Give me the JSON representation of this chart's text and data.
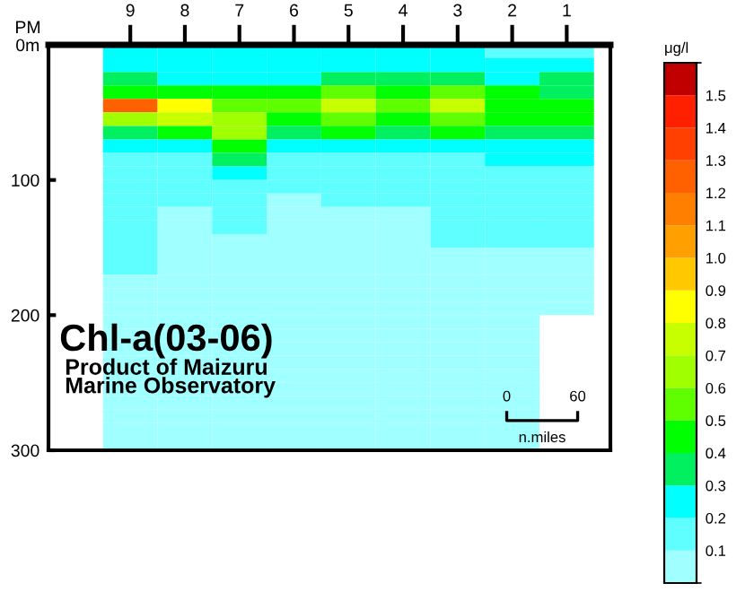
{
  "chart_data": {
    "type": "heatmap",
    "categories": [
      "9",
      "8",
      "7",
      "6",
      "5",
      "4",
      "3",
      "2",
      "1"
    ],
    "y": [
      5,
      15,
      25,
      35,
      45,
      55,
      65,
      75,
      85,
      95,
      105,
      115,
      125,
      135,
      145,
      155,
      165,
      175,
      185,
      195,
      205,
      215,
      225,
      235,
      245,
      255,
      265,
      275,
      285,
      295
    ],
    "cells": [
      [
        0.25,
        0.25,
        0.25,
        0.25,
        0.25,
        0.25,
        0.25,
        0.15,
        0.15
      ],
      [
        0.25,
        0.25,
        0.25,
        0.25,
        0.25,
        0.25,
        0.25,
        0.25,
        0.25
      ],
      [
        0.35,
        0.25,
        0.25,
        0.25,
        0.35,
        0.35,
        0.35,
        0.25,
        0.35
      ],
      [
        0.45,
        0.45,
        0.45,
        0.45,
        0.55,
        0.45,
        0.55,
        0.45,
        0.35
      ],
      [
        1.25,
        0.85,
        0.55,
        0.55,
        0.75,
        0.55,
        0.75,
        0.45,
        0.45
      ],
      [
        0.65,
        0.75,
        0.65,
        0.45,
        0.55,
        0.45,
        0.55,
        0.45,
        0.45
      ],
      [
        0.35,
        0.45,
        0.65,
        0.35,
        0.45,
        0.35,
        0.45,
        0.35,
        0.35
      ],
      [
        0.25,
        0.25,
        0.45,
        0.25,
        0.25,
        0.25,
        0.25,
        0.25,
        0.25
      ],
      [
        0.15,
        0.15,
        0.35,
        0.15,
        0.15,
        0.15,
        0.15,
        0.25,
        0.25
      ],
      [
        0.15,
        0.15,
        0.25,
        0.15,
        0.15,
        0.15,
        0.15,
        0.15,
        0.15
      ],
      [
        0.15,
        0.15,
        0.15,
        0.15,
        0.15,
        0.15,
        0.15,
        0.15,
        0.15
      ],
      [
        0.15,
        0.15,
        0.15,
        0.05,
        0.15,
        0.15,
        0.15,
        0.15,
        0.15
      ],
      [
        0.15,
        0.05,
        0.15,
        0.05,
        0.05,
        0.05,
        0.15,
        0.15,
        0.15
      ],
      [
        0.15,
        0.05,
        0.15,
        0.05,
        0.05,
        0.05,
        0.15,
        0.15,
        0.15
      ],
      [
        0.15,
        0.05,
        0.05,
        0.05,
        0.05,
        0.05,
        0.15,
        0.15,
        0.15
      ],
      [
        0.15,
        0.05,
        0.05,
        0.05,
        0.05,
        0.05,
        0.05,
        0.05,
        0.05
      ],
      [
        0.15,
        0.05,
        0.05,
        0.05,
        0.05,
        0.05,
        0.05,
        0.05,
        0.05
      ],
      [
        0.05,
        0.05,
        0.05,
        0.05,
        0.05,
        0.05,
        0.05,
        0.05,
        0.05
      ],
      [
        0.05,
        0.05,
        0.05,
        0.05,
        0.05,
        0.05,
        0.05,
        0.05,
        0.05
      ],
      [
        0.05,
        0.05,
        0.05,
        0.05,
        0.05,
        0.05,
        0.05,
        0.05,
        0.05
      ],
      [
        0.05,
        0.05,
        0.05,
        0.05,
        0.05,
        0.05,
        0.05,
        0.05,
        null
      ],
      [
        0.05,
        0.05,
        0.05,
        0.05,
        0.05,
        0.05,
        0.05,
        0.05,
        null
      ],
      [
        0.05,
        0.05,
        0.05,
        0.05,
        0.05,
        0.05,
        0.05,
        0.05,
        null
      ],
      [
        0.05,
        0.05,
        0.05,
        0.05,
        0.05,
        0.05,
        0.05,
        0.05,
        null
      ],
      [
        0.05,
        0.05,
        0.05,
        0.05,
        0.05,
        0.05,
        0.05,
        0.05,
        null
      ],
      [
        0.05,
        0.05,
        0.05,
        0.05,
        0.05,
        0.05,
        0.05,
        0.05,
        null
      ],
      [
        0.05,
        0.05,
        0.05,
        0.05,
        0.05,
        0.05,
        0.05,
        0.05,
        null
      ],
      [
        0.05,
        0.05,
        0.05,
        0.05,
        0.05,
        0.05,
        0.05,
        0.05,
        null
      ],
      [
        0.05,
        0.05,
        0.05,
        0.05,
        0.05,
        0.05,
        0.05,
        0.05,
        null
      ],
      [
        0.05,
        0.05,
        0.05,
        0.05,
        0.05,
        0.05,
        0.05,
        0.05,
        null
      ]
    ],
    "xlabel": "PM",
    "ylim": [
      300,
      0
    ],
    "yticks": [
      {
        "value": 0,
        "label": "0m"
      },
      100,
      200,
      300
    ],
    "clim": [
      0,
      1.6
    ],
    "cticks": [
      0.1,
      0.2,
      0.3,
      0.4,
      0.5,
      0.6,
      0.7,
      0.8,
      0.9,
      {
        "value": 1,
        "label": "1.0"
      },
      1.1,
      1.2,
      1.3,
      1.4,
      1.5
    ],
    "clabel": "μg/l",
    "annotations": [
      "Chl-a(03-06)",
      "Product of Maizuru\nMarine Observatory",
      "0",
      "60",
      "n.miles"
    ]
  }
}
